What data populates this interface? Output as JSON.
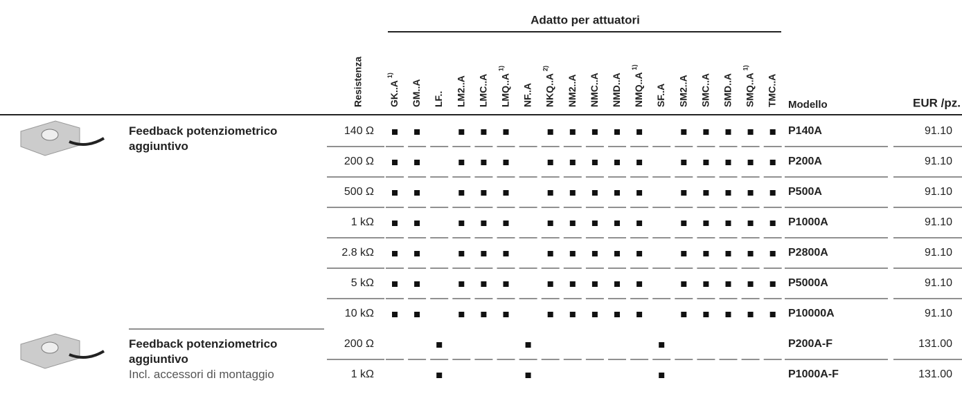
{
  "header": {
    "group_title": "Adatto per attuatori",
    "resistance": "Resistenza",
    "model": "Modello",
    "price": "EUR /pz."
  },
  "actuators": [
    {
      "label": "GK..A",
      "note": "1)"
    },
    {
      "label": "GM..A"
    },
    {
      "label": "LF.."
    },
    {
      "label": "LM2..A"
    },
    {
      "label": "LMC..A"
    },
    {
      "label": "LMQ..A",
      "note": "1)"
    },
    {
      "label": "NF..A"
    },
    {
      "label": "NKQ..A",
      "note": "2)"
    },
    {
      "label": "NM2..A"
    },
    {
      "label": "NMC..A"
    },
    {
      "label": "NMD..A"
    },
    {
      "label": "NMQ..A",
      "note": "1)"
    },
    {
      "label": "SF..A"
    },
    {
      "label": "SM2..A"
    },
    {
      "label": "SMC..A"
    },
    {
      "label": "SMD..A"
    },
    {
      "label": "SMQ..A",
      "note": "1)"
    },
    {
      "label": "TMC..A"
    }
  ],
  "groups": [
    {
      "title": "Feedback potenziometrico aggiuntivo",
      "rows": [
        {
          "resistance": "140 Ω",
          "compat": [
            true,
            true,
            false,
            true,
            true,
            true,
            false,
            true,
            true,
            true,
            true,
            true,
            false,
            true,
            true,
            true,
            true,
            true
          ],
          "model": "P140A",
          "price": "91.10"
        },
        {
          "resistance": "200 Ω",
          "compat": [
            true,
            true,
            false,
            true,
            true,
            true,
            false,
            true,
            true,
            true,
            true,
            true,
            false,
            true,
            true,
            true,
            true,
            true
          ],
          "model": "P200A",
          "price": "91.10"
        },
        {
          "resistance": "500 Ω",
          "compat": [
            true,
            true,
            false,
            true,
            true,
            true,
            false,
            true,
            true,
            true,
            true,
            true,
            false,
            true,
            true,
            true,
            true,
            true
          ],
          "model": "P500A",
          "price": "91.10"
        },
        {
          "resistance": "1 kΩ",
          "compat": [
            true,
            true,
            false,
            true,
            true,
            true,
            false,
            true,
            true,
            true,
            true,
            true,
            false,
            true,
            true,
            true,
            true,
            true
          ],
          "model": "P1000A",
          "price": "91.10"
        },
        {
          "resistance": "2.8 kΩ",
          "compat": [
            true,
            true,
            false,
            true,
            true,
            true,
            false,
            true,
            true,
            true,
            true,
            true,
            false,
            true,
            true,
            true,
            true,
            true
          ],
          "model": "P2800A",
          "price": "91.10"
        },
        {
          "resistance": "5 kΩ",
          "compat": [
            true,
            true,
            false,
            true,
            true,
            true,
            false,
            true,
            true,
            true,
            true,
            true,
            false,
            true,
            true,
            true,
            true,
            true
          ],
          "model": "P5000A",
          "price": "91.10"
        },
        {
          "resistance": "10 kΩ",
          "compat": [
            true,
            true,
            false,
            true,
            true,
            true,
            false,
            true,
            true,
            true,
            true,
            true,
            false,
            true,
            true,
            true,
            true,
            true
          ],
          "model": "P10000A",
          "price": "91.10"
        }
      ]
    },
    {
      "title": "Feedback potenziometrico aggiuntivo",
      "subtitle": "Incl. accessori di montaggio",
      "rows": [
        {
          "resistance": "200 Ω",
          "compat": [
            false,
            false,
            true,
            false,
            false,
            false,
            true,
            false,
            false,
            false,
            false,
            false,
            true,
            false,
            false,
            false,
            false,
            false
          ],
          "model": "P200A-F",
          "price": "131.00"
        },
        {
          "resistance": "1 kΩ",
          "compat": [
            false,
            false,
            true,
            false,
            false,
            false,
            true,
            false,
            false,
            false,
            false,
            false,
            true,
            false,
            false,
            false,
            false,
            false
          ],
          "model": "P1000A-F",
          "price": "131.00"
        }
      ]
    }
  ]
}
